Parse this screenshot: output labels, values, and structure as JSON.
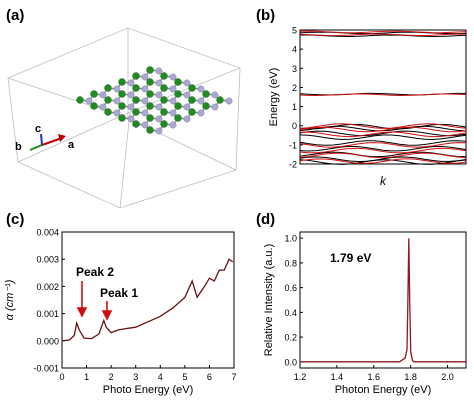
{
  "panels": {
    "a": {
      "label": "(a)",
      "axes": {
        "a": "a",
        "b": "b",
        "c": "c"
      },
      "colors": {
        "atom_n": "#1e8c1e",
        "atom_b": "#a9a9d6",
        "bond": "#8a8a8a",
        "box": "#bbbbbb",
        "axis_a": "#c00000",
        "axis_b": "#1e8c1e",
        "axis_c": "#1f3fa8"
      }
    },
    "b": {
      "label": "(b)",
      "ylabel": "Energy (eV)",
      "xlabel": "k",
      "yticks": [
        "5",
        "4",
        "3",
        "2",
        "1",
        "0",
        "-1",
        "-2"
      ],
      "colors": {
        "black_bands": "#000000",
        "red_bands": "#d01010"
      }
    },
    "c": {
      "label": "(c)",
      "ylabel": "α (cm⁻¹)",
      "xlabel": "Photo Energy (eV)",
      "yticks": [
        "0.004",
        "0.003",
        "0.002",
        "0.001",
        "0.000",
        "-0.001"
      ],
      "xticks": [
        "0",
        "1",
        "2",
        "3",
        "4",
        "5",
        "6",
        "7"
      ],
      "peak2": "Peak 2",
      "peak1": "Peak 1",
      "colors": {
        "curve": "#6b1010",
        "arrow": "#d01010"
      }
    },
    "d": {
      "label": "(d)",
      "ylabel": "Relative Intensity (a.u.)",
      "xlabel": "Photon Energy (eV)",
      "yticks": [
        "1.0",
        "0.8",
        "0.6",
        "0.4",
        "0.2",
        "0.0"
      ],
      "xticks": [
        "1.2",
        "1.4",
        "1.6",
        "1.8",
        "2.0"
      ],
      "annotation": "1.79 eV",
      "colors": {
        "curve": "#8b1a1a"
      }
    }
  },
  "chart_data": [
    {
      "type": "line",
      "panel": "b",
      "ylim": [
        -2,
        5
      ],
      "ylabel": "Energy (eV)",
      "xlabel": "k",
      "series": [
        {
          "name": "",
          "color": "black",
          "values": [
            4.85,
            4.7,
            1.65,
            -0.05,
            -0.15,
            -0.4,
            -0.6,
            -0.9,
            -1.2,
            -1.5,
            -1.75,
            -1.9
          ]
        },
        {
          "name": "",
          "color": "red",
          "values": [
            4.9,
            4.75,
            1.62,
            -0.02,
            -0.2,
            -0.45,
            -1.0,
            -1.3,
            -1.55,
            -1.85
          ]
        }
      ]
    },
    {
      "type": "line",
      "panel": "c",
      "xlim": [
        0,
        7
      ],
      "ylim": [
        -0.001,
        0.004
      ],
      "xlabel": "Photo Energy (eV)",
      "ylabel": "α (cm⁻¹)",
      "x": [
        0,
        0.3,
        0.5,
        0.6,
        0.7,
        0.9,
        1.2,
        1.5,
        1.7,
        1.8,
        2.0,
        2.3,
        2.6,
        3.0,
        3.5,
        4.0,
        4.5,
        5.0,
        5.3,
        5.5,
        5.8,
        6.0,
        6.2,
        6.4,
        6.6,
        6.8,
        6.95
      ],
      "values": [
        0.0,
        3e-05,
        0.0002,
        0.00065,
        0.0004,
        0.0001,
        8e-05,
        0.00025,
        0.00075,
        0.0005,
        0.0003,
        0.0004,
        0.00045,
        0.0005,
        0.0007,
        0.0009,
        0.0012,
        0.0016,
        0.0022,
        0.0016,
        0.002,
        0.0023,
        0.0022,
        0.0026,
        0.0026,
        0.003,
        0.0029
      ]
    },
    {
      "type": "line",
      "panel": "d",
      "xlim": [
        1.2,
        2.1
      ],
      "ylim": [
        -0.05,
        1.05
      ],
      "xlabel": "Photon Energy (eV)",
      "ylabel": "Relative Intensity (a.u.)",
      "peak": 1.79,
      "x": [
        1.2,
        1.74,
        1.75,
        1.76,
        1.77,
        1.78,
        1.785,
        1.79,
        1.795,
        1.8,
        1.81,
        1.82,
        2.1
      ],
      "values": [
        0.0,
        0.0,
        0.01,
        0.02,
        0.03,
        0.1,
        0.5,
        1.0,
        0.5,
        0.08,
        0.01,
        0.0,
        0.0
      ]
    }
  ]
}
